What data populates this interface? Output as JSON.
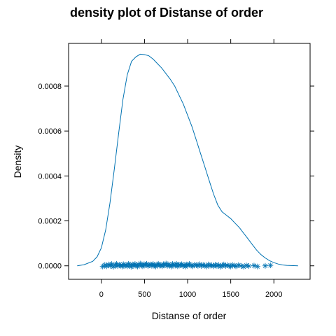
{
  "chart_data": {
    "type": "line",
    "title": "density plot of Distanse of order",
    "xlabel": "Distanse of order",
    "ylabel": "Density",
    "xlim": [
      -380,
      2420
    ],
    "ylim": [
      -6e-05,
      0.00099
    ],
    "x_ticks": [
      0,
      500,
      1000,
      1500,
      2000
    ],
    "x_tick_labels": [
      "0",
      "500",
      "1000",
      "1500",
      "2000"
    ],
    "y_ticks": [
      0,
      0.0002,
      0.0004,
      0.0006,
      0.0008
    ],
    "y_tick_labels": [
      "0.0000",
      "0.0002",
      "0.0004",
      "0.0006",
      "0.0008"
    ],
    "grid": false,
    "legend": "none",
    "colors": {
      "line": "#0072b2",
      "points": "#0072b2",
      "frame": "#000000"
    },
    "series": [
      {
        "kind": "density",
        "x": [
          -280,
          -200,
          -100,
          -50,
          0,
          50,
          100,
          150,
          200,
          250,
          300,
          350,
          400,
          450,
          500,
          550,
          600,
          650,
          700,
          750,
          800,
          850,
          900,
          950,
          1000,
          1050,
          1100,
          1150,
          1200,
          1250,
          1300,
          1350,
          1400,
          1450,
          1500,
          1550,
          1600,
          1650,
          1700,
          1750,
          1800,
          1850,
          1900,
          1950,
          2000,
          2050,
          2100,
          2150,
          2200,
          2280
        ],
        "y": [
          0.0,
          5e-06,
          2e-05,
          4e-05,
          8e-05,
          0.00016,
          0.00028,
          0.00043,
          0.00059,
          0.00074,
          0.00085,
          0.00091,
          0.00093,
          0.000942,
          0.00094,
          0.000935,
          0.00092,
          0.0009,
          0.00088,
          0.000855,
          0.00083,
          0.0008,
          0.00076,
          0.00072,
          0.00067,
          0.00062,
          0.00056,
          0.0005,
          0.00044,
          0.00038,
          0.00032,
          0.00027,
          0.00024,
          0.000225,
          0.00021,
          0.00019,
          0.00017,
          0.000145,
          0.00012,
          9.5e-05,
          7e-05,
          5e-05,
          3.5e-05,
          2.3e-05,
          1.4e-05,
          8e-06,
          4e-06,
          2e-06,
          1e-06,
          0.0
        ]
      },
      {
        "kind": "rug",
        "marker": "asterisk",
        "x": [
          15,
          40,
          60,
          80,
          105,
          120,
          140,
          160,
          175,
          190,
          210,
          225,
          240,
          255,
          270,
          285,
          300,
          315,
          330,
          345,
          360,
          375,
          390,
          405,
          420,
          435,
          450,
          465,
          480,
          495,
          510,
          525,
          540,
          555,
          570,
          585,
          600,
          615,
          630,
          645,
          660,
          675,
          690,
          705,
          720,
          735,
          750,
          765,
          780,
          795,
          810,
          825,
          840,
          855,
          870,
          885,
          900,
          915,
          930,
          945,
          960,
          975,
          990,
          1005,
          1020,
          1040,
          1060,
          1080,
          1100,
          1120,
          1140,
          1160,
          1180,
          1200,
          1220,
          1240,
          1260,
          1280,
          1300,
          1320,
          1340,
          1360,
          1380,
          1400,
          1420,
          1440,
          1460,
          1480,
          1500,
          1520,
          1540,
          1560,
          1590,
          1620,
          1650,
          1680,
          1710,
          1770,
          1810,
          1900,
          1960
        ],
        "y": [
          -3e-06,
          4e-06,
          -2e-06,
          6e-06,
          0.0,
          8e-06,
          -4e-06,
          3e-06,
          9e-06,
          -1e-06,
          5e-06,
          2e-06,
          -3e-06,
          7e-06,
          1e-06,
          4e-06,
          -2e-06,
          9e-06,
          3e-06,
          -4e-06,
          6e-06,
          0.0,
          8e-06,
          2e-06,
          -3e-06,
          5e-06,
          1e-05,
          1e-06,
          -2e-06,
          7e-06,
          4e-06,
          9e-06,
          -1e-06,
          3e-06,
          6e-06,
          0.0,
          8e-06,
          2e-06,
          -3e-06,
          5e-06,
          9e-06,
          1e-06,
          4e-06,
          -2e-06,
          7e-06,
          3e-06,
          1e-05,
          0.0,
          6e-06,
          2e-06,
          -3e-06,
          8e-06,
          4e-06,
          1e-06,
          9e-06,
          -2e-06,
          5e-06,
          3e-06,
          7e-06,
          0.0,
          4e-06,
          -3e-06,
          6e-06,
          2e-06,
          8e-06,
          1e-06,
          -2e-06,
          5e-06,
          3e-06,
          0.0,
          7e-06,
          -1e-06,
          4e-06,
          2e-06,
          -3e-06,
          6e-06,
          1e-06,
          3e-06,
          -2e-06,
          5e-06,
          0.0,
          4e-06,
          -4e-06,
          2e-06,
          6e-06,
          -1e-06,
          3e-06,
          0.0,
          -3e-06,
          4e-06,
          1e-06,
          -2e-06,
          3e-06,
          0.0,
          -4e-06,
          2e-06,
          -1e-06,
          1e-06,
          -3e-06,
          0.0,
          2e-06
        ]
      }
    ]
  }
}
